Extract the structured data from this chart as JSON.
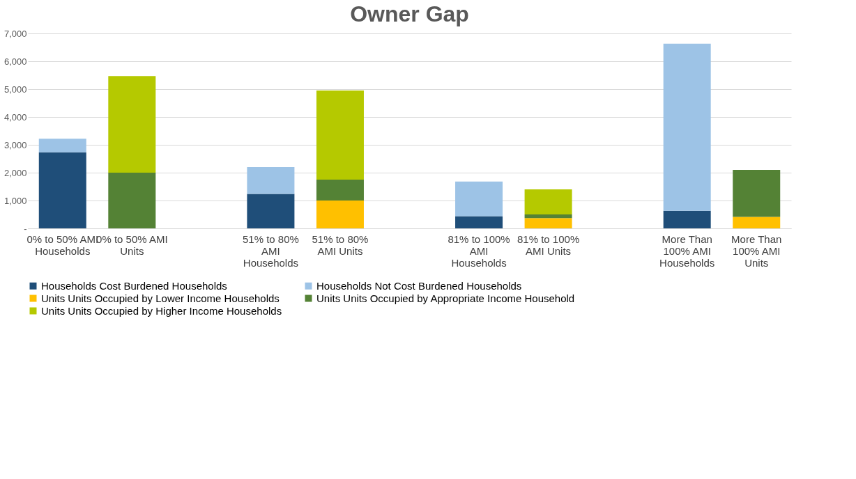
{
  "chart_data": {
    "type": "bar",
    "stacked": true,
    "title": "Owner Gap",
    "categories": [
      "0% to 50% AMI Households",
      "0% to 50% AMI Units",
      null,
      "51% to 80% AMI Households",
      "51% to 80% AMI Units",
      null,
      "81% to 100% AMI Households",
      "81% to 100% AMI Units",
      null,
      "More Than 100% AMI Households",
      "More Than 100% AMI Units"
    ],
    "series": [
      {
        "name": "Households Cost Burdened Households",
        "color": "#1f4e79",
        "values": [
          2730,
          null,
          null,
          1240,
          null,
          null,
          440,
          null,
          null,
          630,
          null
        ]
      },
      {
        "name": "Households Not Cost Burdened Households",
        "color": "#9dc3e6",
        "values": [
          490,
          null,
          null,
          960,
          null,
          null,
          1240,
          null,
          null,
          6000,
          null
        ]
      },
      {
        "name": "Units Units Occupied by Lower Income Households",
        "color": "#ffc000",
        "values": [
          null,
          null,
          null,
          null,
          1000,
          null,
          null,
          370,
          null,
          null,
          410
        ]
      },
      {
        "name": "Units Units Occupied by Appropriate Income Household",
        "color": "#548235",
        "values": [
          null,
          2000,
          null,
          null,
          750,
          null,
          null,
          130,
          null,
          null,
          1690
        ]
      },
      {
        "name": "Units Units Occupied by Higher Income Households",
        "color": "#b5c900",
        "values": [
          null,
          3470,
          null,
          null,
          3200,
          null,
          null,
          900,
          null,
          null,
          null
        ]
      }
    ],
    "ylim": [
      0,
      7000
    ],
    "yticks": [
      {
        "value": 0,
        "label": "-"
      },
      {
        "value": 1000,
        "label": "1,000"
      },
      {
        "value": 2000,
        "label": "2,000"
      },
      {
        "value": 3000,
        "label": "3,000"
      },
      {
        "value": 4000,
        "label": "4,000"
      },
      {
        "value": 5000,
        "label": "5,000"
      },
      {
        "value": 6000,
        "label": "6,000"
      },
      {
        "value": 7000,
        "label": "7,000"
      }
    ],
    "grid": "y",
    "legend": "bottom"
  }
}
